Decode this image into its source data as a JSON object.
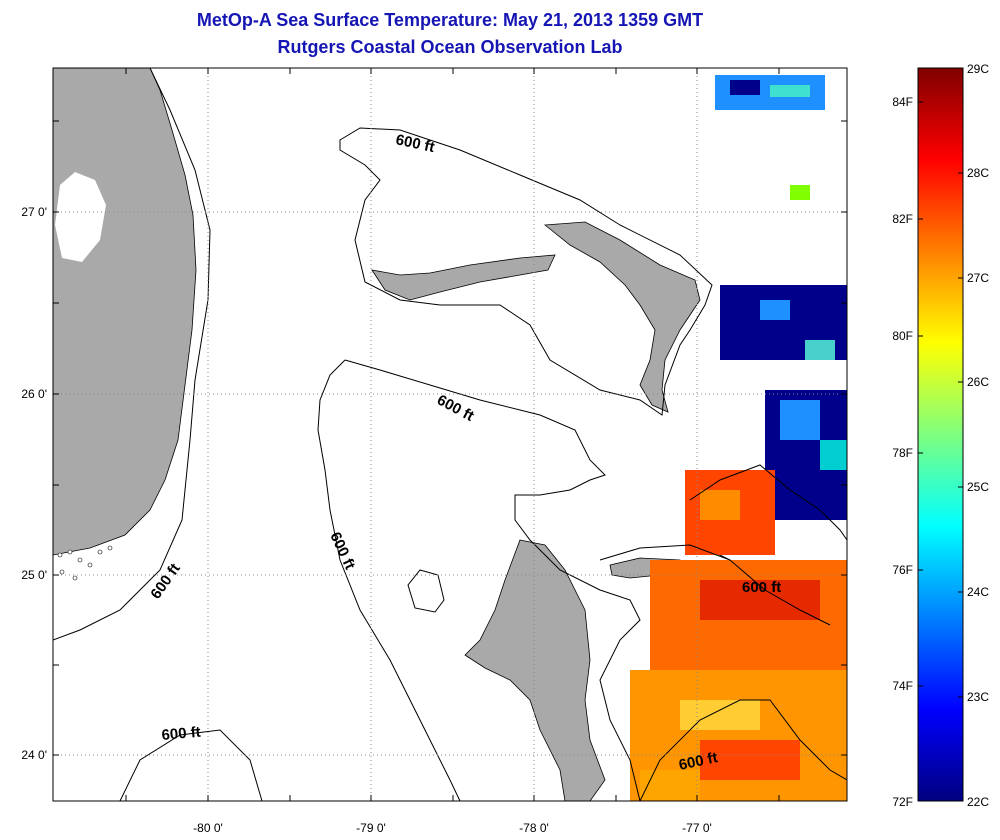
{
  "title": "MetOp-A Sea Surface Temperature:  May 21, 2013 1359 GMT",
  "subtitle": "Rutgers Coastal Ocean Observation Lab",
  "map": {
    "longitude_ticks": [
      "-80 0'",
      "-79 0'",
      "-78 0'",
      "-77 0'"
    ],
    "latitude_ticks": [
      "27 0'",
      "26 0'",
      "25 0'",
      "24 0'"
    ],
    "contour_labels": [
      "600 ft",
      "600 ft",
      "600 ft",
      "600 ft",
      "600 ft",
      "600 ft"
    ],
    "land_color": "#a9a9a9",
    "grid": "dotted"
  },
  "colorbar": {
    "fahrenheit_ticks": [
      "84F",
      "82F",
      "80F",
      "78F",
      "76F",
      "74F",
      "72F"
    ],
    "celsius_ticks": [
      "29C",
      "28C",
      "27C",
      "26C",
      "25C",
      "24C",
      "23C",
      "22C"
    ],
    "range_c": [
      22,
      29
    ],
    "colormap": "jet"
  }
}
